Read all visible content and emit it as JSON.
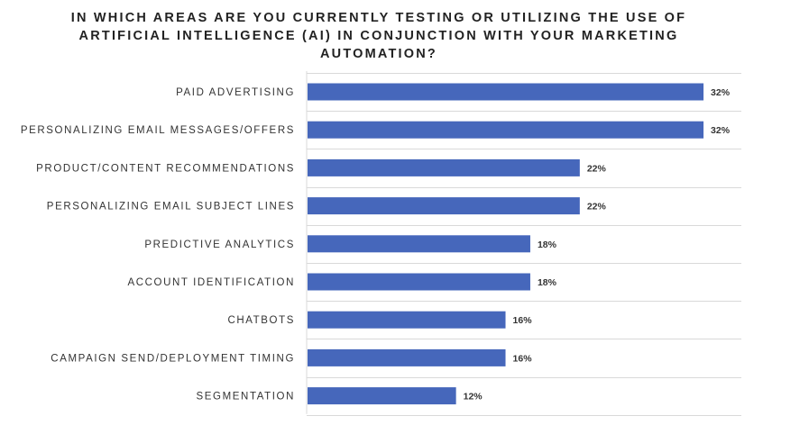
{
  "chart_data": {
    "type": "bar",
    "orientation": "horizontal",
    "title_lines": [
      "IN WHICH AREAS ARE YOU CURRENTLY TESTING OR UTILIZING THE USE OF",
      "ARTIFICIAL INTELLIGENCE (AI) IN CONJUNCTION WITH YOUR MARKETING",
      "AUTOMATION?"
    ],
    "categories": [
      "PAID ADVERTISING",
      "PERSONALIZING EMAIL MESSAGES/OFFERS",
      "PRODUCT/CONTENT RECOMMENDATIONS",
      "PERSONALIZING EMAIL SUBJECT LINES",
      "PREDICTIVE ANALYTICS",
      "ACCOUNT IDENTIFICATION",
      "CHATBOTS",
      "CAMPAIGN SEND/DEPLOYMENT TIMING",
      "SEGMENTATION"
    ],
    "values": [
      32,
      32,
      22,
      22,
      18,
      18,
      16,
      16,
      12
    ],
    "value_labels": [
      "32%",
      "32%",
      "22%",
      "22%",
      "18%",
      "18%",
      "16%",
      "16%",
      "12%"
    ],
    "unit": "%",
    "xlim": [
      0,
      35
    ],
    "grid": "horizontal separators",
    "legend": "none",
    "bar_color": "#4667bb",
    "grid_color": "#d9d9d9"
  }
}
